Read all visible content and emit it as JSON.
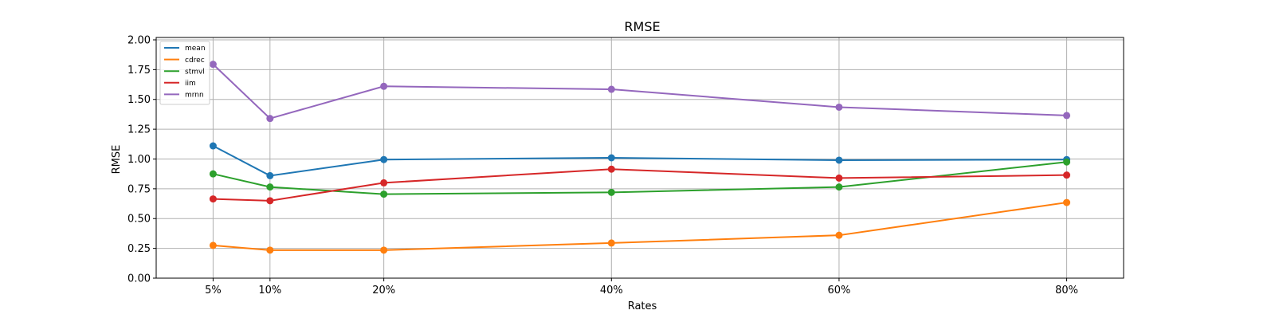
{
  "chart_data": {
    "type": "line",
    "title": "RMSE",
    "xlabel": "Rates",
    "ylabel": "RMSE",
    "x": [
      5,
      10,
      20,
      40,
      60,
      80
    ],
    "x_tick_labels": [
      "5%",
      "10%",
      "20%",
      "40%",
      "60%",
      "80%"
    ],
    "xlim": [
      0,
      85
    ],
    "ylim": [
      0,
      2.02
    ],
    "y_ticks": [
      0.0,
      0.25,
      0.5,
      0.75,
      1.0,
      1.25,
      1.5,
      1.75,
      2.0
    ],
    "y_tick_labels": [
      "0.00",
      "0.25",
      "0.50",
      "0.75",
      "1.00",
      "1.25",
      "1.50",
      "1.75",
      "2.00"
    ],
    "grid": true,
    "legend_position": "top-left",
    "markers": true,
    "series": [
      {
        "name": "mean",
        "color": "#1f77b4",
        "values": [
          1.11,
          0.86,
          0.995,
          1.01,
          0.99,
          0.995
        ]
      },
      {
        "name": "cdrec",
        "color": "#ff7f0e",
        "values": [
          0.275,
          0.235,
          0.235,
          0.295,
          0.36,
          0.635
        ]
      },
      {
        "name": "stmvl",
        "color": "#2ca02c",
        "values": [
          0.875,
          0.765,
          0.705,
          0.72,
          0.765,
          0.975
        ]
      },
      {
        "name": "iim",
        "color": "#d62728",
        "values": [
          0.665,
          0.65,
          0.8,
          0.915,
          0.84,
          0.865
        ]
      },
      {
        "name": "mrnn",
        "color": "#9467bd",
        "values": [
          1.795,
          1.34,
          1.61,
          1.585,
          1.435,
          1.365
        ]
      }
    ]
  }
}
